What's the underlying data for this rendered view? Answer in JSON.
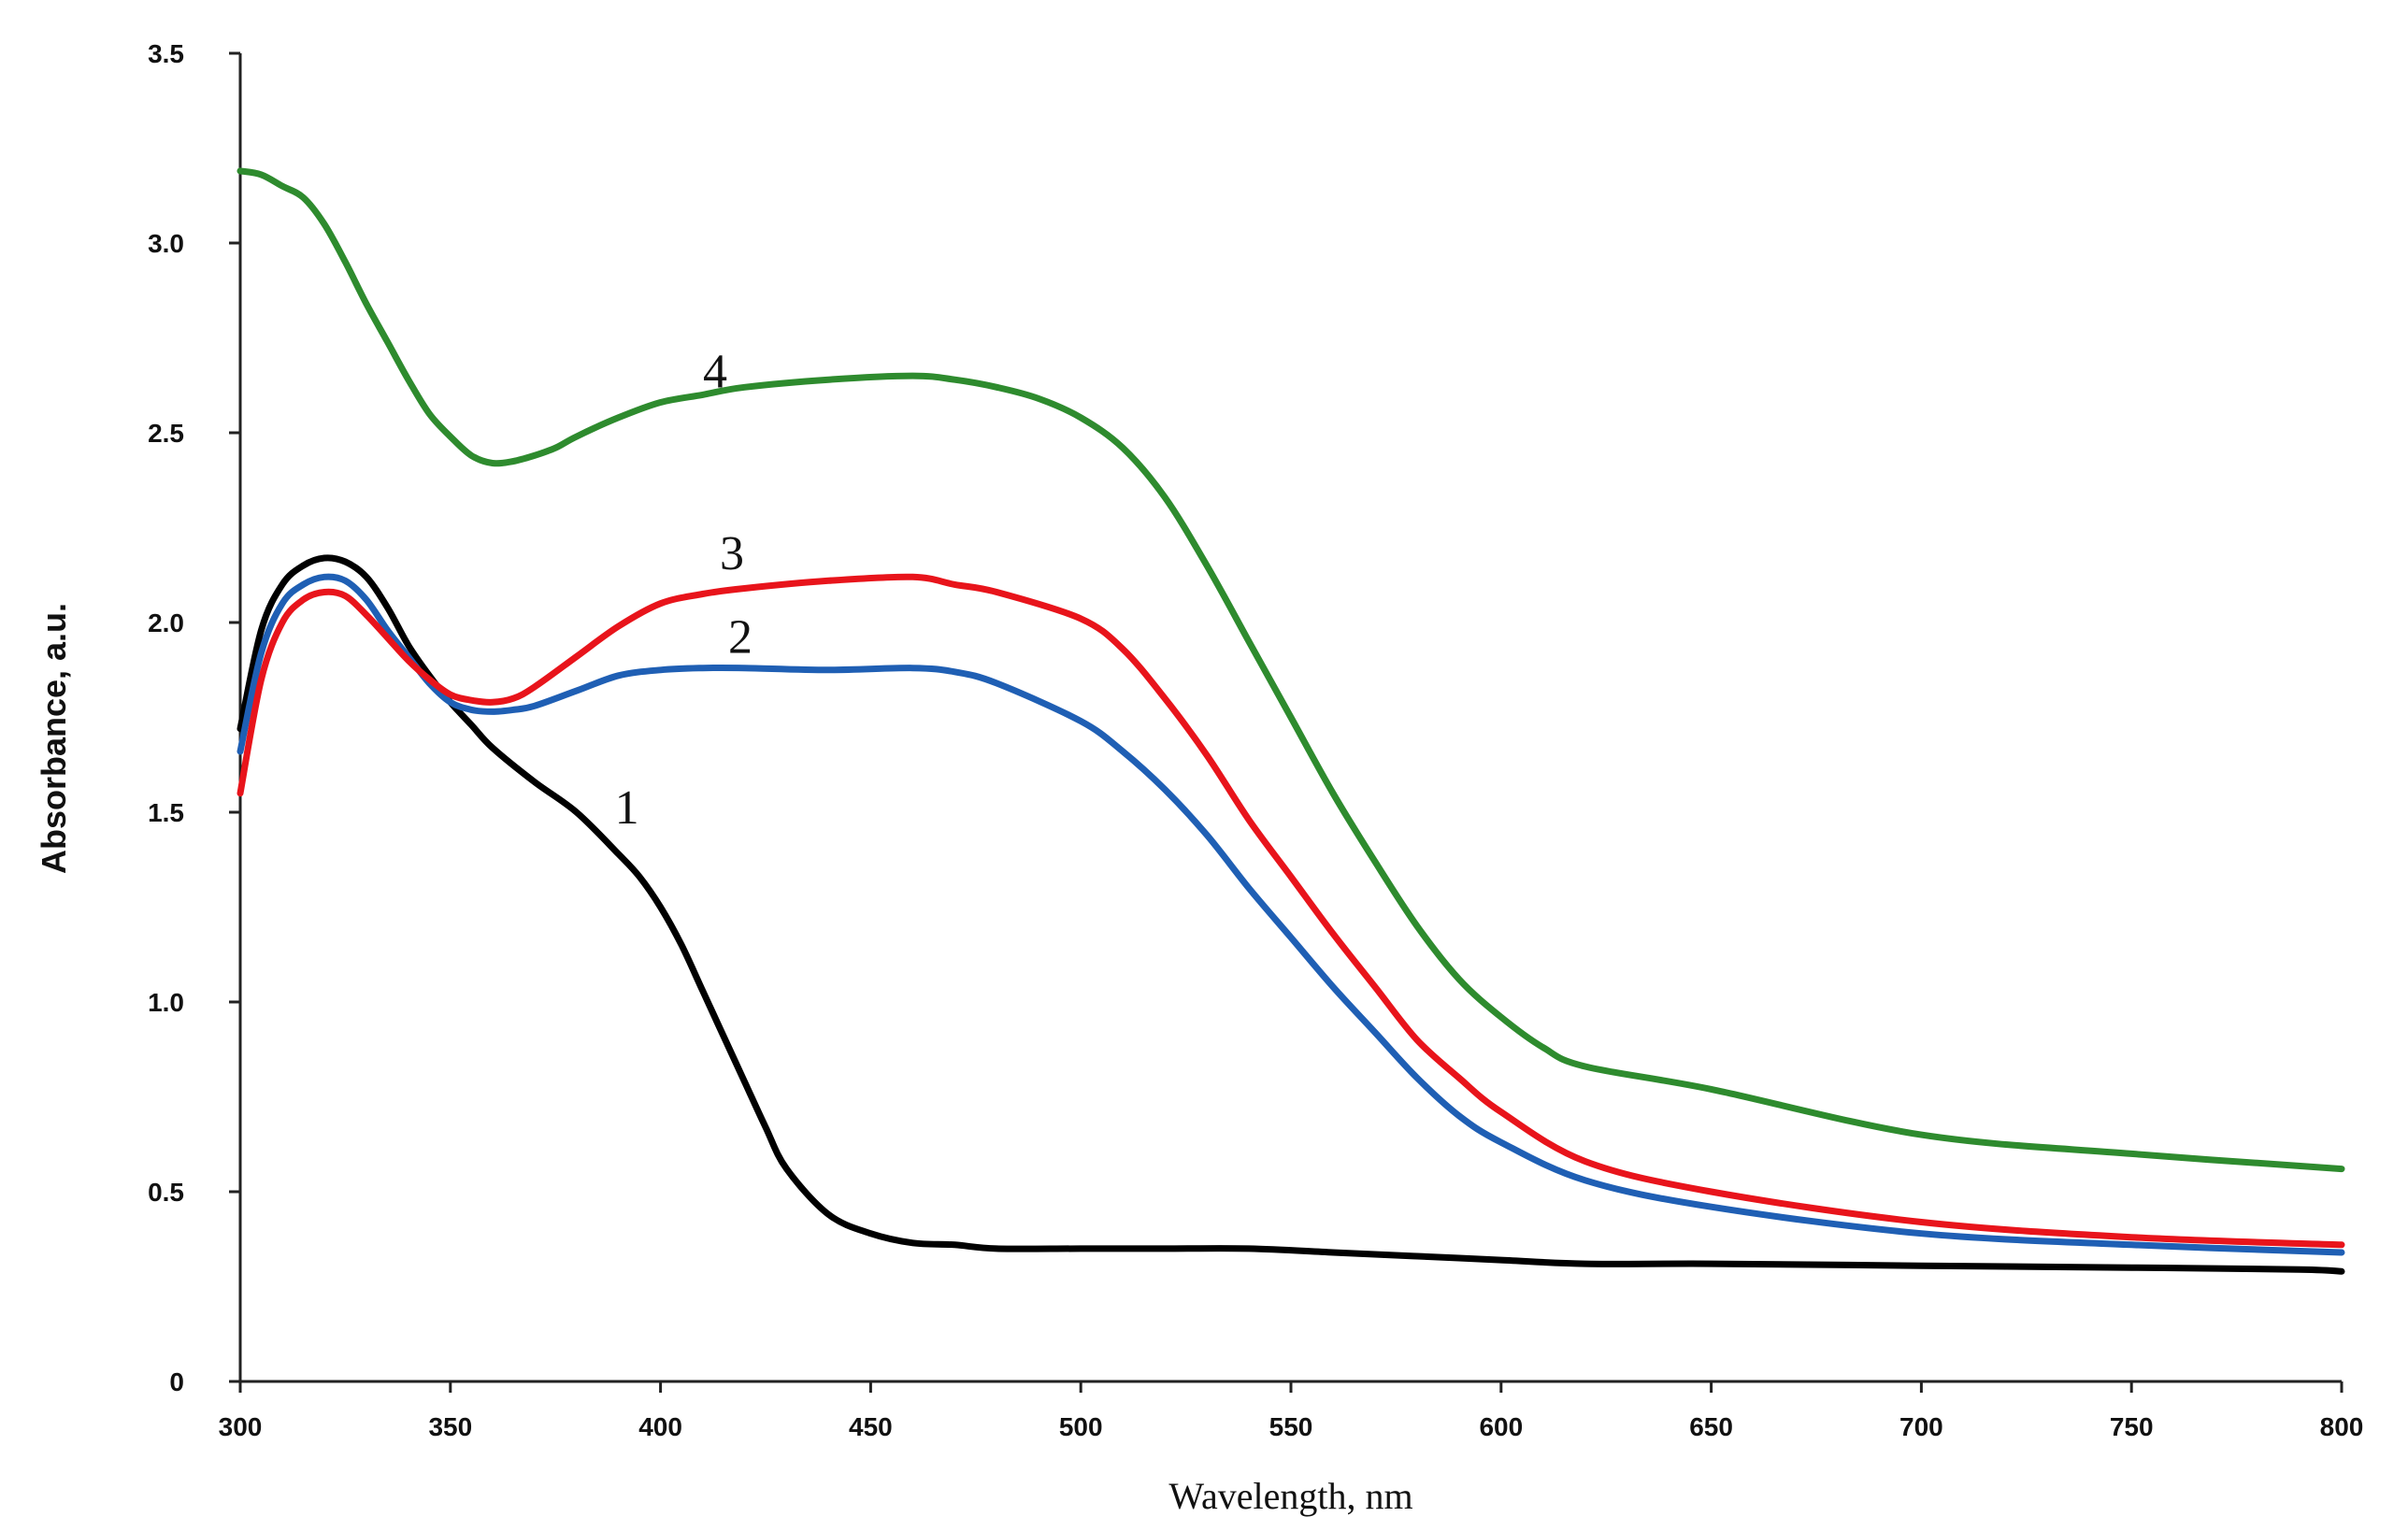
{
  "chart_data": {
    "type": "line",
    "title": "",
    "xlabel": "Wavelength, nm",
    "ylabel": "Absorbance, a.u.",
    "xlim": [
      300,
      800
    ],
    "ylim": [
      0,
      3.5
    ],
    "grid": false,
    "legend": "none",
    "x_ticks": [
      300,
      350,
      400,
      450,
      500,
      550,
      600,
      650,
      700,
      750,
      800
    ],
    "x_tick_labels": [
      "300",
      "350",
      "400",
      "450",
      "500",
      "550",
      "600",
      "650",
      "700",
      "750",
      "800"
    ],
    "y_ticks": [
      0,
      0.5,
      1.0,
      1.5,
      2.0,
      2.5,
      3.0,
      3.5
    ],
    "y_tick_labels": [
      "0",
      "0.5",
      "1.0",
      "1.5",
      "2.0",
      "2.5",
      "3.0",
      "3.5"
    ],
    "series": [
      {
        "name": "1",
        "color": "#000000",
        "label_at": [
          392,
          1.47
        ],
        "x": [
          300,
          305,
          310,
          315,
          320,
          325,
          330,
          335,
          340,
          345,
          350,
          355,
          360,
          370,
          380,
          390,
          395,
          400,
          405,
          410,
          415,
          420,
          425,
          430,
          440,
          450,
          460,
          470,
          480,
          500,
          520,
          540,
          560,
          580,
          600,
          620,
          650,
          700,
          750,
          790,
          800
        ],
        "y": [
          1.72,
          1.98,
          2.1,
          2.15,
          2.17,
          2.16,
          2.12,
          2.04,
          1.94,
          1.86,
          1.79,
          1.73,
          1.67,
          1.58,
          1.5,
          1.39,
          1.33,
          1.25,
          1.15,
          1.03,
          0.91,
          0.79,
          0.67,
          0.56,
          0.44,
          0.39,
          0.365,
          0.36,
          0.35,
          0.35,
          0.35,
          0.35,
          0.34,
          0.33,
          0.32,
          0.31,
          0.31,
          0.305,
          0.3,
          0.295,
          0.29
        ]
      },
      {
        "name": "2",
        "color": "#1f5fb4",
        "label_at": [
          419,
          1.92
        ],
        "x": [
          300,
          305,
          310,
          315,
          320,
          325,
          330,
          335,
          340,
          345,
          350,
          355,
          360,
          365,
          370,
          380,
          390,
          400,
          410,
          420,
          440,
          460,
          470,
          480,
          500,
          510,
          520,
          530,
          540,
          550,
          560,
          570,
          580,
          590,
          600,
          620,
          650,
          700,
          750,
          800
        ],
        "y": [
          1.66,
          1.92,
          2.05,
          2.1,
          2.12,
          2.11,
          2.06,
          1.98,
          1.91,
          1.84,
          1.79,
          1.77,
          1.765,
          1.77,
          1.78,
          1.82,
          1.86,
          1.875,
          1.88,
          1.88,
          1.875,
          1.88,
          1.87,
          1.84,
          1.74,
          1.66,
          1.56,
          1.44,
          1.3,
          1.17,
          1.04,
          0.92,
          0.8,
          0.7,
          0.63,
          0.53,
          0.46,
          0.39,
          0.36,
          0.34
        ]
      },
      {
        "name": "3",
        "color": "#e8141b",
        "label_at": [
          417,
          2.14
        ],
        "x": [
          300,
          305,
          310,
          315,
          320,
          325,
          330,
          335,
          340,
          345,
          350,
          355,
          360,
          365,
          370,
          380,
          390,
          400,
          410,
          420,
          440,
          460,
          470,
          480,
          500,
          510,
          520,
          530,
          540,
          550,
          560,
          570,
          580,
          590,
          600,
          620,
          650,
          700,
          750,
          800
        ],
        "y": [
          1.55,
          1.85,
          2.0,
          2.06,
          2.08,
          2.07,
          2.02,
          1.96,
          1.9,
          1.85,
          1.81,
          1.795,
          1.79,
          1.8,
          1.83,
          1.91,
          1.99,
          2.05,
          2.075,
          2.09,
          2.11,
          2.12,
          2.1,
          2.08,
          2.01,
          1.93,
          1.8,
          1.65,
          1.48,
          1.33,
          1.18,
          1.04,
          0.9,
          0.8,
          0.71,
          0.58,
          0.5,
          0.42,
          0.38,
          0.36
        ]
      },
      {
        "name": "4",
        "color": "#2e8b2e",
        "label_at": [
          413,
          2.62
        ],
        "x": [
          300,
          305,
          310,
          315,
          320,
          325,
          330,
          335,
          340,
          345,
          350,
          355,
          360,
          365,
          370,
          375,
          380,
          390,
          400,
          410,
          420,
          440,
          460,
          470,
          480,
          490,
          500,
          510,
          520,
          530,
          540,
          550,
          560,
          570,
          580,
          590,
          600,
          610,
          620,
          650,
          700,
          750,
          800
        ],
        "y": [
          3.19,
          3.18,
          3.15,
          3.12,
          3.05,
          2.95,
          2.84,
          2.74,
          2.64,
          2.55,
          2.49,
          2.44,
          2.42,
          2.425,
          2.44,
          2.46,
          2.49,
          2.54,
          2.58,
          2.6,
          2.62,
          2.64,
          2.65,
          2.64,
          2.62,
          2.59,
          2.54,
          2.46,
          2.33,
          2.15,
          1.95,
          1.75,
          1.55,
          1.37,
          1.2,
          1.06,
          0.96,
          0.88,
          0.83,
          0.77,
          0.65,
          0.6,
          0.56
        ]
      }
    ]
  }
}
